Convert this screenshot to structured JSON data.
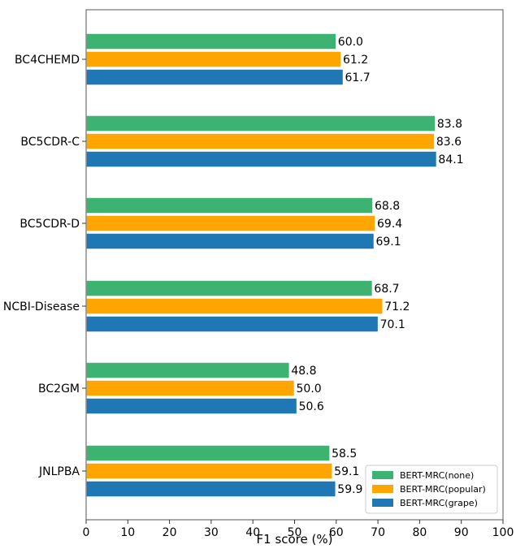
{
  "chart_data": {
    "type": "bar",
    "orientation": "horizontal",
    "xlabel": "F1 score (%)",
    "ylabel": "",
    "xlim": [
      0,
      100
    ],
    "xticks": [
      0,
      10,
      20,
      30,
      40,
      50,
      60,
      70,
      80,
      90,
      100
    ],
    "categories": [
      "BC4CHEMD",
      "BC5CDR-C",
      "BC5CDR-D",
      "NCBI-Disease",
      "BC2GM",
      "JNLPBA"
    ],
    "series": [
      {
        "name": "BERT-MRC(none)",
        "color": "#3cb371",
        "values": [
          60.0,
          83.8,
          68.8,
          68.7,
          48.8,
          58.5
        ]
      },
      {
        "name": "BERT-MRC(popular)",
        "color": "#ffa500",
        "values": [
          61.2,
          83.6,
          69.4,
          71.2,
          50.0,
          59.1
        ]
      },
      {
        "name": "BERT-MRC(grape)",
        "color": "#1f77b4",
        "values": [
          61.7,
          84.1,
          69.1,
          70.1,
          50.6,
          59.9
        ]
      }
    ],
    "data_labels": [
      [
        "60.0",
        "83.8",
        "68.8",
        "68.7",
        "48.8",
        "58.5"
      ],
      [
        "61.2",
        "83.6",
        "69.4",
        "71.2",
        "50.0",
        "59.1"
      ],
      [
        "61.7",
        "84.1",
        "69.1",
        "70.1",
        "50.6",
        "59.9"
      ]
    ],
    "legend_position": "lower-right",
    "grid": false
  }
}
